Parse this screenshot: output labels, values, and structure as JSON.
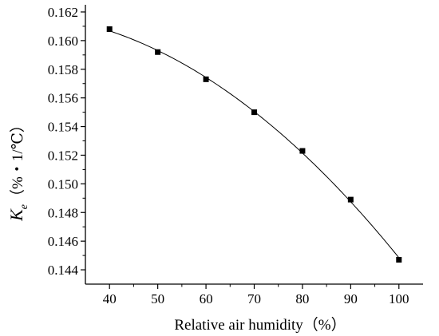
{
  "chart_data": {
    "type": "line",
    "title": "",
    "xlabel": "Relative air humidity（%）",
    "ylabel": {
      "symbol": "K",
      "subscript": "e",
      "unit": "（%・1/℃）"
    },
    "xlim": [
      35,
      105
    ],
    "ylim": [
      0.143,
      0.1625
    ],
    "xticks": [
      "40",
      "50",
      "60",
      "70",
      "80",
      "90",
      "100"
    ],
    "yticks": [
      "0.144",
      "0.146",
      "0.148",
      "0.150",
      "0.152",
      "0.154",
      "0.156",
      "0.158",
      "0.160",
      "0.162"
    ],
    "grid": false,
    "legend": "none",
    "series": [
      {
        "x": [
          40,
          50,
          60,
          70,
          80,
          90,
          100
        ],
        "y": [
          0.1608,
          0.1592,
          0.1573,
          0.155,
          0.1523,
          0.1489,
          0.1447
        ],
        "marker": "square",
        "color": "#000000"
      }
    ]
  }
}
